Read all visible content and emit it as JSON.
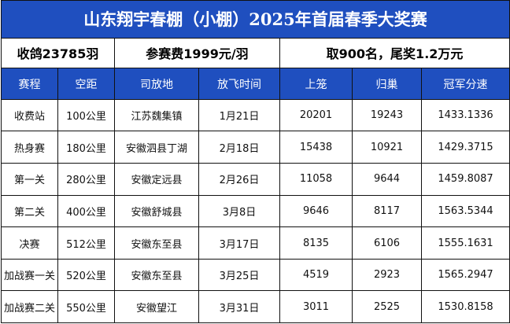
{
  "title": "山东翔宇春棚（小棚）2025年首届春季大奖赛",
  "info": {
    "collected": "收鸽23785羽",
    "entry_fee": "参赛费1999元/羽",
    "prize": "取900名，尾奖1.2万元"
  },
  "headers": [
    "赛程",
    "空距",
    "司放地",
    "放飞时间",
    "上笼",
    "归巢",
    "冠军分速"
  ],
  "rows": [
    [
      "收费站",
      "100公里",
      "江苏魏集镇",
      "1月21日",
      "20201",
      "19243",
      "1433.1336"
    ],
    [
      "热身赛",
      "180公里",
      "安徽泗县丁湖",
      "2月18日",
      "15438",
      "10921",
      "1429.3715"
    ],
    [
      "第一关",
      "280公里",
      "安徽定远县",
      "2月26日",
      "11058",
      "9644",
      "1459.8087"
    ],
    [
      "第二关",
      "400公里",
      "安徽舒城县",
      "3月8日",
      "9646",
      "8117",
      "1563.5344"
    ],
    [
      "决赛",
      "512公里",
      "安徽东至县",
      "3月17日",
      "8135",
      "6106",
      "1555.1631"
    ],
    [
      "加战赛一关",
      "520公里",
      "安徽东至县",
      "3月25日",
      "4519",
      "2923",
      "1565.2947"
    ],
    [
      "加战赛二关",
      "550公里",
      "安徽望江",
      "3月31日",
      "3011",
      "2525",
      "1530.8158"
    ]
  ],
  "colors": {
    "header_bg": "#1f4fbf",
    "header_text": "#ffffff",
    "grid": "#111111"
  }
}
